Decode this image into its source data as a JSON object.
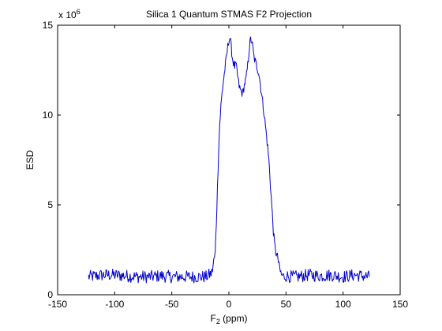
{
  "chart_data": {
    "type": "line",
    "title": "Silica 1 Quantum STMAS F2 Projection",
    "xlabel": "F",
    "xlabel_sub": "2",
    "xlabel_unit": " (ppm)",
    "ylabel": "ESD",
    "y_multiplier": {
      "base": "x 10",
      "exponent": "6"
    },
    "xlim": [
      -150,
      150
    ],
    "ylim": [
      0,
      15
    ],
    "x_ticks": [
      -150,
      -100,
      -50,
      0,
      50,
      100,
      150
    ],
    "y_ticks": [
      0,
      5,
      10,
      15
    ],
    "grid": false,
    "legend": "none",
    "series": [
      {
        "color": "#0000cc",
        "x": [
          -123,
          -110,
          -100,
          -90,
          -80,
          -70,
          -60,
          -50,
          -40,
          -30,
          -20,
          -15,
          -12,
          -11,
          -10,
          -9,
          -8,
          -7,
          -6,
          -5,
          -4,
          -3,
          -2,
          -1,
          0,
          1,
          2,
          3,
          4,
          5,
          6,
          7,
          8,
          9,
          10,
          11,
          12,
          13,
          14,
          15,
          16,
          17,
          18,
          19,
          20,
          21,
          22,
          23,
          24,
          25,
          26,
          27,
          28,
          29,
          30,
          31,
          32,
          33,
          34,
          35,
          36,
          37,
          38,
          39,
          40,
          41,
          42,
          43,
          44,
          45,
          46,
          48,
          50,
          55,
          60,
          70,
          80,
          90,
          100,
          110,
          123
        ],
        "y": [
          1.0,
          1.1,
          1.1,
          1.05,
          1.0,
          1.0,
          1.05,
          1.0,
          1.0,
          1.0,
          1.0,
          1.2,
          2.3,
          4.0,
          6.0,
          8.0,
          9.5,
          10.5,
          11.2,
          11.8,
          12.3,
          12.8,
          13.3,
          13.8,
          14.2,
          14.3,
          13.8,
          13.2,
          12.9,
          12.7,
          12.8,
          12.5,
          12.0,
          11.6,
          11.4,
          11.3,
          11.2,
          11.5,
          11.8,
          12.0,
          12.5,
          13.1,
          13.8,
          14.2,
          14.1,
          13.7,
          13.2,
          13.0,
          12.8,
          12.6,
          12.4,
          12.0,
          11.5,
          11.0,
          10.5,
          10.0,
          9.4,
          8.8,
          8.2,
          7.5,
          6.5,
          5.5,
          4.5,
          3.5,
          2.8,
          2.4,
          2.2,
          2.0,
          1.6,
          1.3,
          1.1,
          1.0,
          1.05,
          1.0,
          1.0,
          1.1,
          1.05,
          1.1,
          1.0,
          1.1,
          1.0
        ]
      }
    ]
  }
}
